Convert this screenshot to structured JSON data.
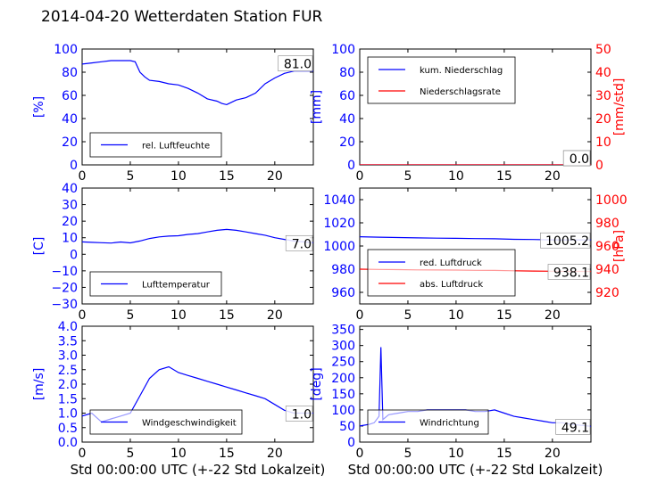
{
  "title": "2014-04-20 Wetterdaten Station FUR",
  "colors": {
    "primary": "#0000ff",
    "secondary": "#ff0000",
    "light": "#8080ff",
    "axis": "#000000"
  },
  "chart_data": [
    {
      "id": "humidity",
      "type": "line",
      "x_ticks": [
        "0",
        "5",
        "10",
        "15",
        "20"
      ],
      "xlim": [
        0,
        24
      ],
      "ylabel": "[%]",
      "ylim": [
        0,
        100
      ],
      "y_ticks": [
        "0",
        "20",
        "40",
        "60",
        "80",
        "100"
      ],
      "legend": [
        "rel. Luftfeuchte"
      ],
      "legend_position": "bottom-left",
      "last_value_label": "81.0",
      "series": [
        {
          "name": "rel. Luftfeuchte",
          "x": [
            0,
            1,
            2,
            3,
            4,
            5,
            5.5,
            6,
            6.5,
            7,
            8,
            9,
            10,
            11,
            12,
            13,
            14,
            14.5,
            15,
            16,
            17,
            18,
            19,
            20,
            21,
            22,
            23,
            24
          ],
          "y": [
            87,
            88,
            89,
            90,
            90,
            90,
            89,
            80,
            76,
            73,
            72,
            70,
            69,
            66,
            62,
            57,
            55,
            53,
            52,
            56,
            58,
            62,
            70,
            75,
            79,
            81,
            81,
            81
          ]
        }
      ]
    },
    {
      "id": "precip",
      "type": "line",
      "x_ticks": [
        "0",
        "5",
        "10",
        "15",
        "20"
      ],
      "xlim": [
        0,
        24
      ],
      "ylabel": "[mm]",
      "ylim": [
        0,
        100
      ],
      "y_ticks": [
        "0",
        "20",
        "40",
        "60",
        "80",
        "100"
      ],
      "y2label": "[mm/std]",
      "y2lim": [
        0,
        50
      ],
      "y2_ticks": [
        "0",
        "10",
        "20",
        "30",
        "40",
        "50"
      ],
      "legend": [
        "kum. Niederschlag",
        "Niederschlagsrate"
      ],
      "legend_position": "top-left",
      "last_value_label": "0.0",
      "last_value_label_2": "0.0",
      "series": [
        {
          "name": "kum. Niederschlag",
          "x": [
            0,
            24
          ],
          "y": [
            0,
            0
          ]
        },
        {
          "name": "Niederschlagsrate",
          "x": [
            0,
            24
          ],
          "y": [
            0,
            0
          ]
        }
      ]
    },
    {
      "id": "temperature",
      "type": "line",
      "x_ticks": [
        "0",
        "5",
        "10",
        "15",
        "20"
      ],
      "xlim": [
        0,
        24
      ],
      "ylabel": "[C]",
      "ylim": [
        -30,
        40
      ],
      "y_ticks": [
        "−30",
        "−20",
        "−10",
        "0",
        "10",
        "20",
        "30",
        "40"
      ],
      "legend": [
        "Lufttemperatur"
      ],
      "legend_position": "bottom-left",
      "last_value_label": "7.0",
      "series": [
        {
          "name": "Lufttemperatur",
          "x": [
            0,
            1,
            2,
            3,
            4,
            5,
            6,
            7,
            8,
            9,
            10,
            11,
            12,
            13,
            14,
            15,
            16,
            17,
            18,
            19,
            20,
            21,
            22,
            23,
            24
          ],
          "y": [
            7.5,
            7.2,
            7,
            6.8,
            7.4,
            6.9,
            8,
            9.5,
            10.5,
            11,
            11.2,
            12,
            12.5,
            13.5,
            14.5,
            15,
            14.5,
            13.5,
            12.5,
            11.5,
            10,
            9,
            8,
            7.5,
            7
          ]
        }
      ]
    },
    {
      "id": "pressure",
      "type": "line",
      "x_ticks": [
        "0",
        "5",
        "10",
        "15",
        "20"
      ],
      "xlim": [
        0,
        24
      ],
      "ylabel": "",
      "ylim": [
        950,
        1050
      ],
      "y_ticks": [
        "960",
        "980",
        "1000",
        "1020",
        "1040"
      ],
      "y2label": "[hPa]",
      "y2lim": [
        910,
        1010
      ],
      "y2_ticks": [
        "920",
        "940",
        "960",
        "980",
        "1000"
      ],
      "legend": [
        "red. Luftdruck",
        "abs. Luftdruck"
      ],
      "legend_position": "bottom-left",
      "last_value_label": "1005.2",
      "last_value_label_2": "938.1",
      "series": [
        {
          "name": "red. Luftdruck",
          "x": [
            0,
            2,
            4,
            6,
            8,
            10,
            12,
            14,
            16,
            18,
            20,
            22,
            24
          ],
          "y": [
            1008,
            1007.6,
            1007.3,
            1007,
            1006.8,
            1006.6,
            1006.4,
            1006.2,
            1005.8,
            1005.6,
            1005.3,
            1005.2,
            1005.2
          ]
        },
        {
          "name": "abs. Luftdruck",
          "x": [
            0,
            2,
            4,
            6,
            8,
            10,
            12,
            14,
            16,
            18,
            20,
            22,
            24
          ],
          "y": [
            940,
            939.8,
            939.6,
            939.4,
            939.3,
            939.2,
            939,
            938.9,
            938.6,
            938.4,
            938.2,
            938.1,
            938.1
          ]
        }
      ]
    },
    {
      "id": "wind-speed",
      "type": "line",
      "x_ticks": [
        "0",
        "5",
        "10",
        "15",
        "20"
      ],
      "xlim": [
        0,
        24
      ],
      "xlabel": "Std 00:00:00 UTC (+-22 Std Lokalzeit)",
      "ylabel": "[m/s]",
      "ylim": [
        0,
        4
      ],
      "y_ticks": [
        "0.0",
        "0.5",
        "1.0",
        "1.5",
        "2.0",
        "2.5",
        "3.0",
        "3.5",
        "4.0"
      ],
      "legend": [
        "Windgeschwindigkeit"
      ],
      "legend_position": "bottom-left",
      "last_value_label": "1.0",
      "series": [
        {
          "name": "Windgeschwindigkeit",
          "x": [
            0,
            1,
            2,
            3,
            4,
            5,
            6,
            7,
            8,
            9,
            10,
            11,
            12,
            13,
            14,
            15,
            16,
            17,
            18,
            19,
            20,
            21,
            22,
            23,
            24
          ],
          "y": [
            0.9,
            1.0,
            0.7,
            0.8,
            0.9,
            1.0,
            1.6,
            2.2,
            2.5,
            2.6,
            2.4,
            2.3,
            2.2,
            2.1,
            2.0,
            1.9,
            1.8,
            1.7,
            1.6,
            1.5,
            1.3,
            1.1,
            1.0,
            1.0,
            1.0
          ]
        }
      ]
    },
    {
      "id": "wind-direction",
      "type": "line",
      "x_ticks": [
        "0",
        "5",
        "10",
        "15",
        "20"
      ],
      "xlim": [
        0,
        24
      ],
      "xlabel": "Std 00:00:00 UTC (+-22 Std Lokalzeit)",
      "ylabel": "[deg]",
      "ylim": [
        0,
        360
      ],
      "y_ticks": [
        "0",
        "50",
        "100",
        "150",
        "200",
        "250",
        "300",
        "350"
      ],
      "legend": [
        "Windrichtung"
      ],
      "legend_position": "bottom-left",
      "last_value_label": "49.1",
      "series": [
        {
          "name": "Windrichtung",
          "x": [
            0,
            1,
            1.5,
            2,
            2.2,
            2.4,
            3,
            4,
            5,
            6,
            7,
            8,
            9,
            10,
            11,
            12,
            13,
            14,
            15,
            16,
            17,
            18,
            19,
            20,
            21,
            22,
            23,
            24
          ],
          "y": [
            50,
            55,
            60,
            80,
            295,
            70,
            85,
            90,
            95,
            95,
            100,
            100,
            100,
            100,
            100,
            95,
            95,
            100,
            90,
            80,
            75,
            70,
            65,
            60,
            60,
            55,
            52,
            49
          ]
        }
      ]
    }
  ]
}
